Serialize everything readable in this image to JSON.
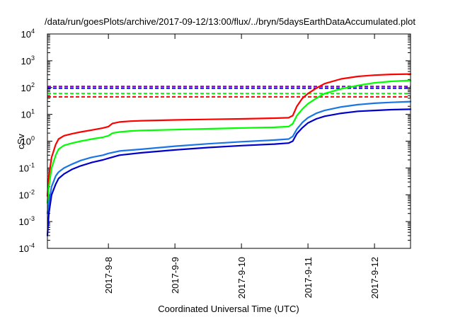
{
  "chart_data": {
    "type": "line",
    "title": "/data/run/goesPlots/archive/2017-09-12/13:00/flux/../bryn/5daysEarthDataAccumulated.plot",
    "xlabel": "Coordinated Universal Time (UTC)",
    "ylabel": "cSv",
    "y_scale": "log",
    "ylim": [
      0.0001,
      10000
    ],
    "y_ticks": [
      {
        "base": "10",
        "exp": "-4",
        "value": 0.0001
      },
      {
        "base": "10",
        "exp": "-3",
        "value": 0.001
      },
      {
        "base": "10",
        "exp": "-2",
        "value": 0.01
      },
      {
        "base": "10",
        "exp": "-1",
        "value": 0.1
      },
      {
        "base": "10",
        "exp": "0",
        "value": 1
      },
      {
        "base": "10",
        "exp": "1",
        "value": 10
      },
      {
        "base": "10",
        "exp": "2",
        "value": 100
      },
      {
        "base": "10",
        "exp": "3",
        "value": 1000
      },
      {
        "base": "10",
        "exp": "4",
        "value": 10000
      }
    ],
    "xlim": [
      "2017-09-07T02:00",
      "2017-09-12T13:00"
    ],
    "x_ticks": [
      "2017-9-8",
      "2017-9-9",
      "2017-9-10",
      "2017-9-11",
      "2017-9-12"
    ],
    "grid": false,
    "legend": "none",
    "series": [
      {
        "color": "#ff0000",
        "x": [
          "2017-09-07T02:00",
          "2017-09-07T02:30",
          "2017-09-07T03:30",
          "2017-09-07T05:00",
          "2017-09-07T06:00",
          "2017-09-07T08:00",
          "2017-09-07T11:00",
          "2017-09-07T14:00",
          "2017-09-07T18:00",
          "2017-09-07T22:00",
          "2017-09-08T00:00",
          "2017-09-08T01:30",
          "2017-09-08T04:00",
          "2017-09-08T08:00",
          "2017-09-08T12:00",
          "2017-09-09T00:00",
          "2017-09-09T12:00",
          "2017-09-10T00:00",
          "2017-09-10T12:00",
          "2017-09-10T17:00",
          "2017-09-10T18:30",
          "2017-09-10T20:00",
          "2017-09-10T22:00",
          "2017-09-11T00:00",
          "2017-09-11T03:00",
          "2017-09-11T06:00",
          "2017-09-11T12:00",
          "2017-09-11T18:00",
          "2017-09-12T00:00",
          "2017-09-12T06:00",
          "2017-09-12T13:00"
        ],
        "values": [
          0.009,
          0.05,
          0.25,
          0.75,
          1.2,
          1.6,
          1.9,
          2.2,
          2.6,
          3.1,
          3.5,
          4.6,
          5.2,
          5.6,
          5.8,
          6.2,
          6.5,
          6.8,
          7.2,
          7.5,
          9,
          20,
          40,
          60,
          95,
          140,
          210,
          260,
          290,
          310,
          320
        ]
      },
      {
        "color": "#00ff00",
        "x": [
          "2017-09-07T02:00",
          "2017-09-07T02:30",
          "2017-09-07T03:30",
          "2017-09-07T05:00",
          "2017-09-07T06:00",
          "2017-09-07T08:00",
          "2017-09-07T11:00",
          "2017-09-07T14:00",
          "2017-09-07T18:00",
          "2017-09-07T22:00",
          "2017-09-08T00:00",
          "2017-09-08T01:30",
          "2017-09-08T04:00",
          "2017-09-08T08:00",
          "2017-09-08T12:00",
          "2017-09-09T00:00",
          "2017-09-09T12:00",
          "2017-09-10T00:00",
          "2017-09-10T12:00",
          "2017-09-10T17:00",
          "2017-09-10T18:30",
          "2017-09-10T20:00",
          "2017-09-10T22:00",
          "2017-09-11T00:00",
          "2017-09-11T03:00",
          "2017-09-11T06:00",
          "2017-09-11T12:00",
          "2017-09-11T18:00",
          "2017-09-12T00:00",
          "2017-09-12T06:00",
          "2017-09-12T13:00"
        ],
        "values": [
          0.005,
          0.02,
          0.1,
          0.3,
          0.5,
          0.7,
          0.85,
          1.0,
          1.2,
          1.4,
          1.6,
          2.0,
          2.2,
          2.4,
          2.5,
          2.7,
          2.9,
          3.1,
          3.3,
          3.5,
          4.5,
          9,
          16,
          25,
          40,
          60,
          90,
          120,
          150,
          170,
          185
        ]
      },
      {
        "color": "#1a75e6",
        "x": [
          "2017-09-07T02:00",
          "2017-09-07T02:30",
          "2017-09-07T03:30",
          "2017-09-07T05:00",
          "2017-09-07T06:00",
          "2017-09-07T08:00",
          "2017-09-07T11:00",
          "2017-09-07T14:00",
          "2017-09-07T18:00",
          "2017-09-07T22:00",
          "2017-09-08T00:00",
          "2017-09-08T04:00",
          "2017-09-08T12:00",
          "2017-09-09T00:00",
          "2017-09-09T12:00",
          "2017-09-10T00:00",
          "2017-09-10T12:00",
          "2017-09-10T17:00",
          "2017-09-10T18:30",
          "2017-09-10T20:00",
          "2017-09-10T22:00",
          "2017-09-11T00:00",
          "2017-09-11T03:00",
          "2017-09-11T06:00",
          "2017-09-11T12:00",
          "2017-09-11T18:00",
          "2017-09-12T00:00",
          "2017-09-12T06:00",
          "2017-09-12T13:00"
        ],
        "values": [
          0.002,
          0.005,
          0.02,
          0.05,
          0.07,
          0.1,
          0.14,
          0.19,
          0.25,
          0.3,
          0.35,
          0.43,
          0.5,
          0.65,
          0.8,
          0.95,
          1.1,
          1.2,
          1.5,
          2.8,
          5,
          7.5,
          11,
          14,
          19,
          23,
          26,
          28,
          30
        ]
      },
      {
        "color": "#0000cc",
        "x": [
          "2017-09-07T02:00",
          "2017-09-07T02:30",
          "2017-09-07T03:30",
          "2017-09-07T05:00",
          "2017-09-07T06:00",
          "2017-09-07T08:00",
          "2017-09-07T11:00",
          "2017-09-07T14:00",
          "2017-09-07T18:00",
          "2017-09-07T22:00",
          "2017-09-08T00:00",
          "2017-09-08T04:00",
          "2017-09-08T12:00",
          "2017-09-09T00:00",
          "2017-09-09T12:00",
          "2017-09-10T00:00",
          "2017-09-10T12:00",
          "2017-09-10T17:00",
          "2017-09-10T18:30",
          "2017-09-10T20:00",
          "2017-09-10T22:00",
          "2017-09-11T00:00",
          "2017-09-11T03:00",
          "2017-09-11T06:00",
          "2017-09-11T12:00",
          "2017-09-11T18:00",
          "2017-09-12T00:00",
          "2017-09-12T06:00",
          "2017-09-12T13:00"
        ],
        "values": [
          0.0003,
          0.002,
          0.01,
          0.025,
          0.04,
          0.06,
          0.09,
          0.12,
          0.16,
          0.2,
          0.23,
          0.3,
          0.37,
          0.47,
          0.58,
          0.68,
          0.78,
          0.85,
          1.0,
          1.9,
          3.2,
          4.8,
          6.8,
          8.5,
          11,
          13,
          14,
          15,
          15.5
        ]
      }
    ],
    "thresholds": [
      {
        "color": "#9400d3",
        "value": 110,
        "style": "dashed"
      },
      {
        "color": "#0000cc",
        "value": 95,
        "style": "dashed"
      },
      {
        "color": "#00ff00",
        "value": 60,
        "style": "dashed"
      },
      {
        "color": "#ff0000",
        "value": 45,
        "style": "dashed"
      }
    ]
  }
}
